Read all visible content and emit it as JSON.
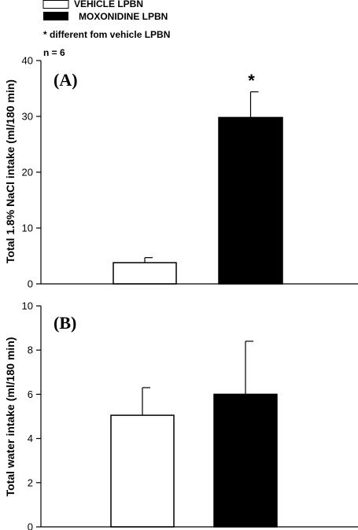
{
  "legend": {
    "items": [
      {
        "label": "VEHICLE LPBN",
        "color": "#ffffff"
      },
      {
        "label": "MOXONIDINE LPBN",
        "color": "#000000"
      }
    ],
    "note": "* different fom vehicle LPBN",
    "n": "n = 6"
  },
  "chart_data": [
    {
      "type": "bar",
      "panel_label": "(A)",
      "ylabel": "Total 1.8%  NaCl intake (ml/180 min)",
      "ylim": [
        0,
        40
      ],
      "yticks": [
        0,
        10,
        20,
        30,
        40
      ],
      "categories": [
        "VEHICLE LPBN",
        "MOXONIDINE LPBN"
      ],
      "values": [
        3.8,
        29.8
      ],
      "errors": [
        0.9,
        4.6
      ],
      "colors": [
        "#ffffff",
        "#000000"
      ],
      "annotations": [
        "",
        "*"
      ]
    },
    {
      "type": "bar",
      "panel_label": "(B)",
      "ylabel": "Total water intake (ml/180 min)",
      "ylim": [
        0,
        10
      ],
      "yticks": [
        0,
        2,
        4,
        6,
        8,
        10
      ],
      "categories": [
        "VEHICLE LPBN",
        "MOXONIDINE LPBN"
      ],
      "values": [
        5.05,
        6.0
      ],
      "errors": [
        1.25,
        2.4
      ],
      "colors": [
        "#ffffff",
        "#000000"
      ],
      "annotations": [
        "",
        ""
      ]
    }
  ]
}
